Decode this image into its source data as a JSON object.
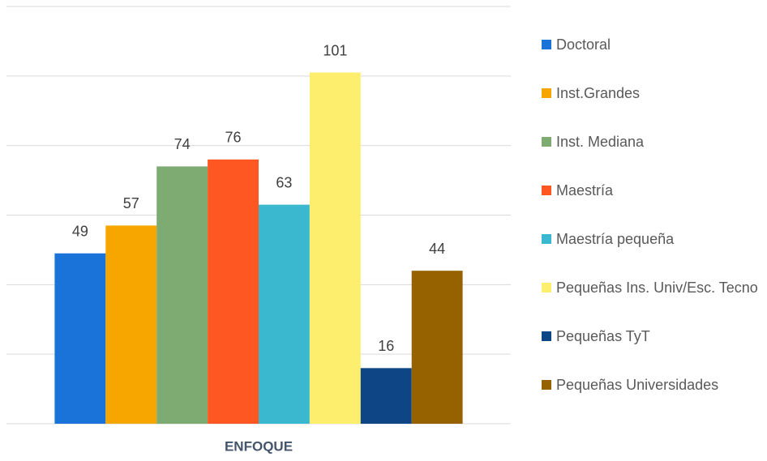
{
  "chart_data": {
    "type": "bar",
    "categories": [
      "ENFOQUE"
    ],
    "series": [
      {
        "name": "Doctoral",
        "color": "#1a73d9",
        "values": [
          49
        ]
      },
      {
        "name": "Inst.Grandes",
        "color": "#f7a600",
        "values": [
          57
        ]
      },
      {
        "name": "Inst. Mediana",
        "color": "#7dab72",
        "values": [
          74
        ]
      },
      {
        "name": "Maestría",
        "color": "#ff5722",
        "values": [
          76
        ]
      },
      {
        "name": "Maestría pequeña",
        "color": "#3ab8cf",
        "values": [
          63
        ]
      },
      {
        "name": "Pequeñas Ins. Univ/Esc. Tecno",
        "color": "#fdee6e",
        "values": [
          101
        ]
      },
      {
        "name": "Pequeñas TyT",
        "color": "#0d4585",
        "values": [
          16
        ]
      },
      {
        "name": "Pequeñas Universidades",
        "color": "#966200",
        "values": [
          44
        ]
      }
    ],
    "ylim": [
      0,
      120
    ],
    "yticks": [
      0,
      20,
      40,
      60,
      80,
      100,
      120
    ],
    "ytick_labels": false,
    "grid": true,
    "legend": "right"
  }
}
